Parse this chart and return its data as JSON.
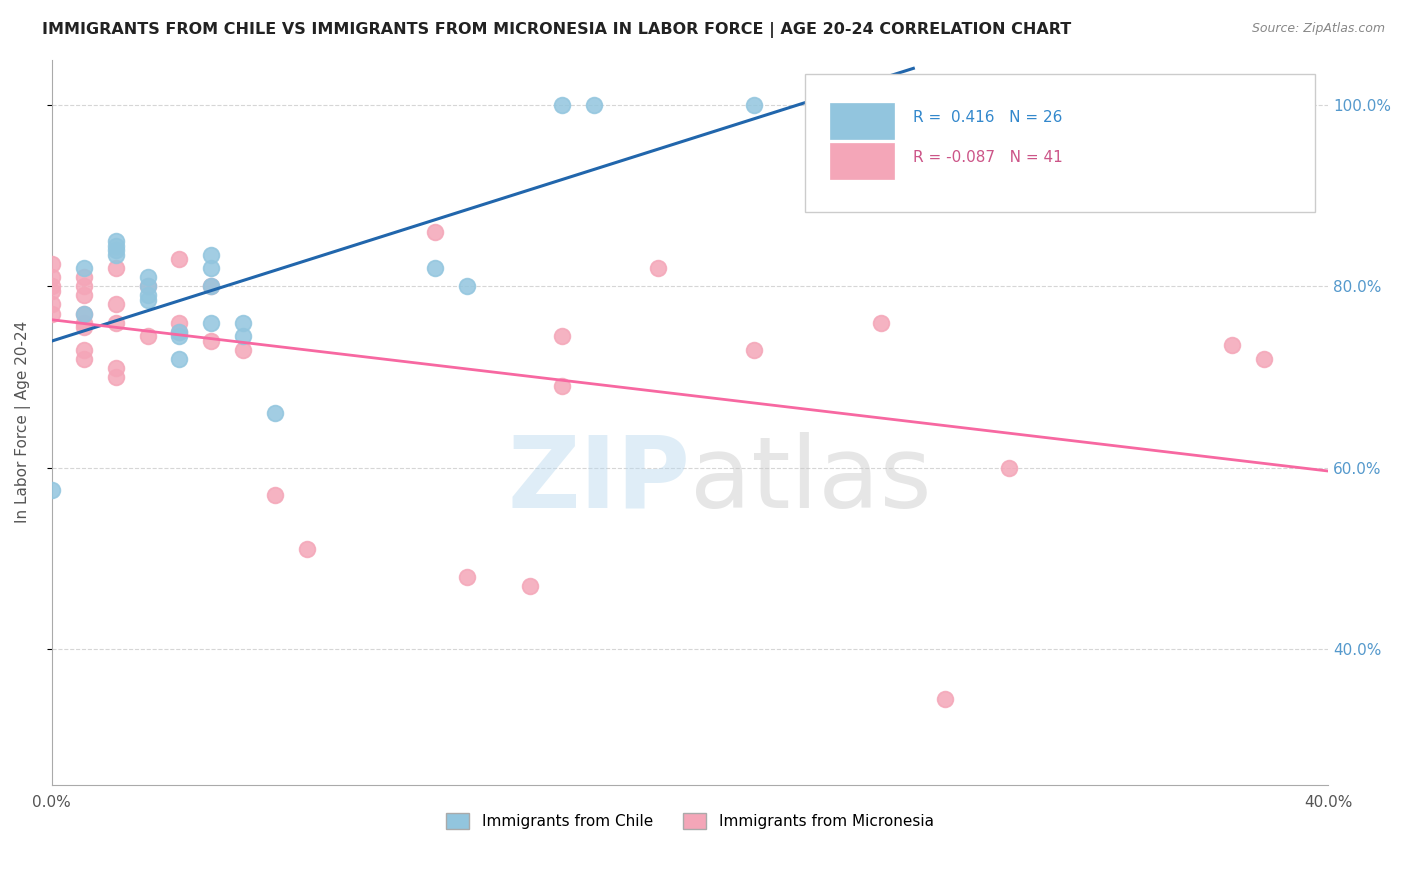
{
  "title": "IMMIGRANTS FROM CHILE VS IMMIGRANTS FROM MICRONESIA IN LABOR FORCE | AGE 20-24 CORRELATION CHART",
  "source_text": "Source: ZipAtlas.com",
  "ylabel": "In Labor Force | Age 20-24",
  "xlim": [
    0.0,
    0.4
  ],
  "ylim": [
    0.25,
    1.05
  ],
  "x_ticks": [
    0.0,
    0.1,
    0.2,
    0.3,
    0.4
  ],
  "x_tick_labels": [
    "0.0%",
    "",
    "",
    "",
    "40.0%"
  ],
  "y_ticks": [
    0.4,
    0.6,
    0.8,
    1.0
  ],
  "y_tick_labels": [
    "40.0%",
    "60.0%",
    "80.0%",
    "100.0%"
  ],
  "watermark": "ZIPatlas",
  "chile_R": 0.416,
  "chile_N": 26,
  "micronesia_R": -0.087,
  "micronesia_N": 41,
  "chile_color": "#92c5de",
  "micronesia_color": "#f4a6b8",
  "chile_line_color": "#2166ac",
  "micronesia_line_color": "#f768a1",
  "grid_color": "#cccccc",
  "background_color": "#ffffff",
  "chile_x": [
    0.0,
    0.01,
    0.01,
    0.02,
    0.02,
    0.02,
    0.02,
    0.03,
    0.03,
    0.03,
    0.03,
    0.04,
    0.04,
    0.04,
    0.05,
    0.05,
    0.05,
    0.05,
    0.06,
    0.06,
    0.07,
    0.12,
    0.13,
    0.16,
    0.17,
    0.22
  ],
  "chile_y": [
    0.575,
    0.82,
    0.77,
    0.835,
    0.84,
    0.845,
    0.85,
    0.785,
    0.79,
    0.8,
    0.81,
    0.72,
    0.745,
    0.75,
    0.76,
    0.8,
    0.82,
    0.835,
    0.745,
    0.76,
    0.66,
    0.82,
    0.8,
    1.0,
    1.0,
    1.0
  ],
  "micronesia_x": [
    0.0,
    0.0,
    0.0,
    0.0,
    0.0,
    0.0,
    0.01,
    0.01,
    0.01,
    0.01,
    0.01,
    0.01,
    0.01,
    0.01,
    0.02,
    0.02,
    0.02,
    0.02,
    0.02,
    0.03,
    0.03,
    0.04,
    0.04,
    0.04,
    0.05,
    0.05,
    0.06,
    0.07,
    0.08,
    0.12,
    0.13,
    0.15,
    0.16,
    0.16,
    0.19,
    0.22,
    0.26,
    0.28,
    0.3,
    0.37,
    0.38
  ],
  "micronesia_y": [
    0.77,
    0.78,
    0.795,
    0.8,
    0.81,
    0.825,
    0.72,
    0.73,
    0.755,
    0.76,
    0.77,
    0.79,
    0.8,
    0.81,
    0.7,
    0.71,
    0.76,
    0.78,
    0.82,
    0.745,
    0.8,
    0.75,
    0.76,
    0.83,
    0.74,
    0.8,
    0.73,
    0.57,
    0.51,
    0.86,
    0.48,
    0.47,
    0.69,
    0.745,
    0.82,
    0.73,
    0.76,
    0.345,
    0.6,
    0.735,
    0.72
  ],
  "legend_chile_text": "R =  0.416   N = 26",
  "legend_micro_text": "R = -0.087   N = 41",
  "tick_label_color": "#5599cc",
  "left_tick_color": "#777777"
}
